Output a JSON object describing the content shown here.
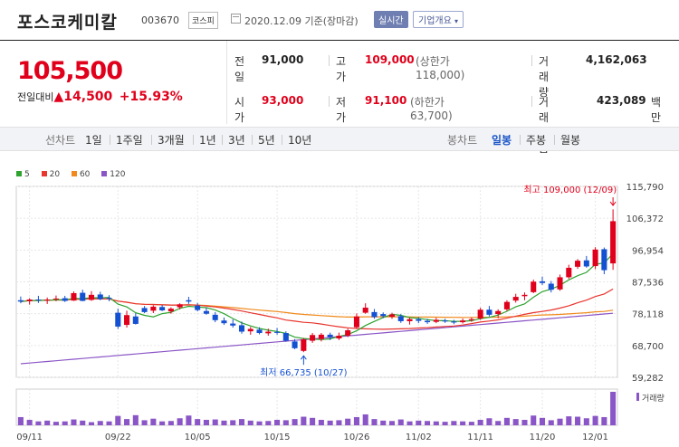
{
  "header": {
    "name": "포스코케미칼",
    "code": "003670",
    "market": "코스피",
    "date": "2020.12.09 기준(장마감)",
    "realtime_label": "실시간",
    "overview_label": "기업개요"
  },
  "price": {
    "current": "105,500",
    "change_label": "전일대비",
    "change_arrow": "▲",
    "change": "14,500",
    "change_pct": "+15.93%"
  },
  "stats": {
    "prev_close": {
      "label": "전일",
      "value": "91,000"
    },
    "high": {
      "label": "고가",
      "value": "109,000",
      "sub": "(상한가 118,000)"
    },
    "volume": {
      "label": "거래량",
      "value": "4,162,063"
    },
    "open": {
      "label": "시가",
      "value": "93,000"
    },
    "low": {
      "label": "저가",
      "value": "91,100",
      "sub": "(하한가 63,700)"
    },
    "amount": {
      "label": "거래대금",
      "value": "423,089",
      "unit": "백만"
    }
  },
  "tabs": {
    "line_chart": "선차트",
    "periods": [
      "1일",
      "1주일",
      "3개월",
      "1년",
      "3년",
      "5년",
      "10년"
    ],
    "candle_chart": "봉차트",
    "candle_types": [
      "일봉",
      "주봉",
      "월봉"
    ],
    "candle_active": "일봉"
  },
  "colors": {
    "up": "#e0001b",
    "down": "#1450d2",
    "ma5": "#2fa32f",
    "ma20": "#e8352e",
    "ma60": "#f08a1c",
    "ma120": "#8a55c6"
  },
  "chart_data": {
    "type": "candlestick",
    "legend": [
      {
        "name": "5",
        "color": "#2fa32f"
      },
      {
        "name": "20",
        "color": "#e8352e"
      },
      {
        "name": "60",
        "color": "#f08a1c"
      },
      {
        "name": "120",
        "color": "#8a55c6"
      }
    ],
    "y_ticks": [
      "115,790",
      "106,372",
      "96,954",
      "87,536",
      "78,118",
      "68,700",
      "59,282"
    ],
    "ylim": [
      59282,
      115790
    ],
    "x_ticks": [
      "09/11",
      "09/22",
      "10/05",
      "10/15",
      "10/26",
      "11/02",
      "11/11",
      "11/20",
      "12/01"
    ],
    "high_annotation": "최고 109,000 (12/09)",
    "low_annotation": "최저 66,735 (10/27)",
    "volume_label": "거래량",
    "candles": [
      {
        "o": 82100,
        "h": 83200,
        "l": 81200,
        "c": 81700
      },
      {
        "o": 81800,
        "h": 82700,
        "l": 80800,
        "c": 82300
      },
      {
        "o": 82300,
        "h": 83400,
        "l": 81300,
        "c": 82100
      },
      {
        "o": 82000,
        "h": 82900,
        "l": 81000,
        "c": 82300
      },
      {
        "o": 82400,
        "h": 83500,
        "l": 81800,
        "c": 82600
      },
      {
        "o": 82700,
        "h": 83400,
        "l": 81600,
        "c": 81900
      },
      {
        "o": 82000,
        "h": 84700,
        "l": 81900,
        "c": 84200
      },
      {
        "o": 84300,
        "h": 85200,
        "l": 81800,
        "c": 81900
      },
      {
        "o": 82200,
        "h": 84800,
        "l": 81900,
        "c": 83700
      },
      {
        "o": 83800,
        "h": 84600,
        "l": 82100,
        "c": 82400
      },
      {
        "o": 82800,
        "h": 83600,
        "l": 81800,
        "c": 82500
      },
      {
        "o": 78400,
        "h": 79600,
        "l": 73600,
        "c": 74300
      },
      {
        "o": 74800,
        "h": 79000,
        "l": 74000,
        "c": 77700
      },
      {
        "o": 77300,
        "h": 78300,
        "l": 74900,
        "c": 75100
      },
      {
        "o": 79800,
        "h": 80400,
        "l": 78300,
        "c": 78600
      },
      {
        "o": 79000,
        "h": 80600,
        "l": 78300,
        "c": 80200
      },
      {
        "o": 80100,
        "h": 80700,
        "l": 78900,
        "c": 79100
      },
      {
        "o": 78800,
        "h": 80000,
        "l": 78100,
        "c": 79600
      },
      {
        "o": 80000,
        "h": 81200,
        "l": 79400,
        "c": 80900
      },
      {
        "o": 82100,
        "h": 83100,
        "l": 81000,
        "c": 81700
      },
      {
        "o": 80500,
        "h": 81300,
        "l": 78800,
        "c": 79200
      },
      {
        "o": 78900,
        "h": 79900,
        "l": 77800,
        "c": 78100
      },
      {
        "o": 77800,
        "h": 78600,
        "l": 75600,
        "c": 76200
      },
      {
        "o": 76100,
        "h": 77000,
        "l": 74800,
        "c": 75300
      },
      {
        "o": 75200,
        "h": 76400,
        "l": 74000,
        "c": 74600
      },
      {
        "o": 74700,
        "h": 75800,
        "l": 72200,
        "c": 72800
      },
      {
        "o": 72900,
        "h": 74200,
        "l": 71900,
        "c": 73600
      },
      {
        "o": 73400,
        "h": 74100,
        "l": 72000,
        "c": 72400
      },
      {
        "o": 72300,
        "h": 73700,
        "l": 71600,
        "c": 72800
      },
      {
        "o": 72700,
        "h": 73900,
        "l": 71900,
        "c": 72600
      },
      {
        "o": 72400,
        "h": 72900,
        "l": 69800,
        "c": 70100
      },
      {
        "o": 69900,
        "h": 70600,
        "l": 67600,
        "c": 67900
      },
      {
        "o": 67100,
        "h": 70900,
        "l": 66735,
        "c": 70500
      },
      {
        "o": 70100,
        "h": 72400,
        "l": 69500,
        "c": 71800
      },
      {
        "o": 70600,
        "h": 72400,
        "l": 69900,
        "c": 71900
      },
      {
        "o": 71900,
        "h": 72500,
        "l": 70300,
        "c": 71200
      },
      {
        "o": 70800,
        "h": 72500,
        "l": 70300,
        "c": 71600
      },
      {
        "o": 71600,
        "h": 73700,
        "l": 71200,
        "c": 73200
      },
      {
        "o": 74100,
        "h": 78200,
        "l": 73700,
        "c": 77300
      },
      {
        "o": 78400,
        "h": 81200,
        "l": 78100,
        "c": 79900
      },
      {
        "o": 78600,
        "h": 79500,
        "l": 76600,
        "c": 77100
      },
      {
        "o": 78000,
        "h": 78500,
        "l": 76800,
        "c": 77400
      },
      {
        "o": 77200,
        "h": 78400,
        "l": 76600,
        "c": 77900
      },
      {
        "o": 77400,
        "h": 78000,
        "l": 75400,
        "c": 75900
      },
      {
        "o": 75900,
        "h": 76900,
        "l": 74900,
        "c": 76500
      },
      {
        "o": 76500,
        "h": 77100,
        "l": 75300,
        "c": 76000
      },
      {
        "o": 76000,
        "h": 76600,
        "l": 75100,
        "c": 75600
      },
      {
        "o": 75700,
        "h": 76900,
        "l": 75300,
        "c": 76300
      },
      {
        "o": 76100,
        "h": 76600,
        "l": 75400,
        "c": 75800
      },
      {
        "o": 75800,
        "h": 76300,
        "l": 75000,
        "c": 75500
      },
      {
        "o": 75600,
        "h": 76700,
        "l": 75200,
        "c": 76100
      },
      {
        "o": 76200,
        "h": 77000,
        "l": 75700,
        "c": 76500
      },
      {
        "o": 76700,
        "h": 79900,
        "l": 76300,
        "c": 79300
      },
      {
        "o": 79300,
        "h": 80400,
        "l": 77300,
        "c": 77800
      },
      {
        "o": 78000,
        "h": 79400,
        "l": 76800,
        "c": 78900
      },
      {
        "o": 79400,
        "h": 82100,
        "l": 78900,
        "c": 81600
      },
      {
        "o": 82000,
        "h": 84000,
        "l": 81400,
        "c": 83100
      },
      {
        "o": 83300,
        "h": 84400,
        "l": 82100,
        "c": 83700
      },
      {
        "o": 84500,
        "h": 88200,
        "l": 84200,
        "c": 87600
      },
      {
        "o": 87700,
        "h": 89100,
        "l": 86600,
        "c": 87200
      },
      {
        "o": 87000,
        "h": 87800,
        "l": 84400,
        "c": 85200
      },
      {
        "o": 85300,
        "h": 89700,
        "l": 84900,
        "c": 88900
      },
      {
        "o": 88900,
        "h": 92600,
        "l": 88400,
        "c": 91700
      },
      {
        "o": 92000,
        "h": 94300,
        "l": 91400,
        "c": 93800
      },
      {
        "o": 93900,
        "h": 95200,
        "l": 91700,
        "c": 92100
      },
      {
        "o": 92200,
        "h": 97800,
        "l": 91300,
        "c": 97100
      },
      {
        "o": 97200,
        "h": 97700,
        "l": 89800,
        "c": 91000
      },
      {
        "o": 93000,
        "h": 109000,
        "l": 91100,
        "c": 105500
      }
    ],
    "volume": [
      2.1,
      1.4,
      1.0,
      1.2,
      0.9,
      1.0,
      1.5,
      1.2,
      0.8,
      1.1,
      1.0,
      2.4,
      1.6,
      2.6,
      1.3,
      1.7,
      1.0,
      1.1,
      1.8,
      2.5,
      1.6,
      1.4,
      1.5,
      1.2,
      1.3,
      1.6,
      1.2,
      1.0,
      1.1,
      1.4,
      1.3,
      1.6,
      2.2,
      1.9,
      1.4,
      1.2,
      1.3,
      1.7,
      2.1,
      2.8,
      1.6,
      1.2,
      1.1,
      1.5,
      1.0,
      1.2,
      1.1,
      1.0,
      0.9,
      1.1,
      1.0,
      0.9,
      1.4,
      1.8,
      1.1,
      1.9,
      1.6,
      1.4,
      2.5,
      1.9,
      1.3,
      1.7,
      2.3,
      2.2,
      1.8,
      2.4,
      2.1,
      8.6
    ]
  }
}
